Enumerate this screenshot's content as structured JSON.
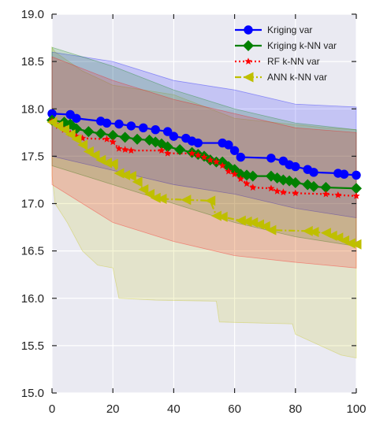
{
  "chart_data": {
    "type": "line",
    "title": "",
    "xlabel": "",
    "ylabel": "",
    "xlim": [
      0,
      100
    ],
    "ylim": [
      15.0,
      19.0
    ],
    "grid": true,
    "legend_position": "top-right",
    "x_ticks": [
      "0",
      "20",
      "40",
      "60",
      "80",
      "100"
    ],
    "y_ticks": [
      "15.0",
      "15.5",
      "16.0",
      "16.5",
      "17.0",
      "17.5",
      "18.0",
      "18.5",
      "19.0"
    ],
    "colors": {
      "background": "#eaeaf2",
      "grid": "#ffffff",
      "kriging": "#0000ff",
      "kriging_knn": "#008000",
      "rf_knn": "#ff0000",
      "ann_knn": "#bfbf00"
    },
    "series": [
      {
        "name": "Kriging var",
        "color": "#0000ff",
        "line": "solid",
        "marker": "circle",
        "points": [
          [
            0,
            17.95
          ],
          [
            6,
            17.94
          ],
          [
            8,
            17.9
          ],
          [
            16,
            17.87
          ],
          [
            18,
            17.85
          ],
          [
            22,
            17.84
          ],
          [
            26,
            17.82
          ],
          [
            30,
            17.8
          ],
          [
            34,
            17.78
          ],
          [
            38,
            17.76
          ],
          [
            40,
            17.71
          ],
          [
            44,
            17.69
          ],
          [
            46,
            17.66
          ],
          [
            48,
            17.64
          ],
          [
            56,
            17.64
          ],
          [
            58,
            17.62
          ],
          [
            60,
            17.56
          ],
          [
            62,
            17.49
          ],
          [
            72,
            17.48
          ],
          [
            76,
            17.45
          ],
          [
            78,
            17.41
          ],
          [
            80,
            17.39
          ],
          [
            84,
            17.36
          ],
          [
            86,
            17.33
          ],
          [
            94,
            17.32
          ],
          [
            96,
            17.31
          ],
          [
            100,
            17.3
          ]
        ],
        "band_upper": [
          [
            0,
            18.6
          ],
          [
            20,
            18.5
          ],
          [
            40,
            18.3
          ],
          [
            60,
            18.2
          ],
          [
            80,
            18.05
          ],
          [
            100,
            18.02
          ]
        ],
        "band_lower": [
          [
            0,
            17.5
          ],
          [
            20,
            17.35
          ],
          [
            40,
            17.2
          ],
          [
            60,
            17.1
          ],
          [
            80,
            16.95
          ],
          [
            100,
            16.85
          ]
        ]
      },
      {
        "name": "Kriging k-NN var",
        "color": "#008000",
        "line": "solid",
        "marker": "diamond",
        "points": [
          [
            0,
            17.88
          ],
          [
            4,
            17.86
          ],
          [
            6,
            17.84
          ],
          [
            8,
            17.79
          ],
          [
            12,
            17.76
          ],
          [
            16,
            17.74
          ],
          [
            20,
            17.72
          ],
          [
            24,
            17.7
          ],
          [
            28,
            17.68
          ],
          [
            32,
            17.67
          ],
          [
            34,
            17.65
          ],
          [
            36,
            17.63
          ],
          [
            38,
            17.6
          ],
          [
            42,
            17.57
          ],
          [
            46,
            17.54
          ],
          [
            48,
            17.52
          ],
          [
            50,
            17.5
          ],
          [
            52,
            17.46
          ],
          [
            54,
            17.44
          ],
          [
            56,
            17.44
          ],
          [
            58,
            17.39
          ],
          [
            60,
            17.36
          ],
          [
            62,
            17.31
          ],
          [
            64,
            17.3
          ],
          [
            66,
            17.29
          ],
          [
            72,
            17.29
          ],
          [
            74,
            17.27
          ],
          [
            76,
            17.25
          ],
          [
            78,
            17.24
          ],
          [
            80,
            17.22
          ],
          [
            84,
            17.2
          ],
          [
            86,
            17.18
          ],
          [
            90,
            17.17
          ],
          [
            100,
            17.16
          ]
        ],
        "band_upper": [
          [
            0,
            18.65
          ],
          [
            20,
            18.45
          ],
          [
            40,
            18.2
          ],
          [
            60,
            18.0
          ],
          [
            80,
            17.85
          ],
          [
            100,
            17.78
          ]
        ],
        "band_lower": [
          [
            0,
            17.4
          ],
          [
            20,
            17.2
          ],
          [
            40,
            17.0
          ],
          [
            60,
            16.8
          ],
          [
            80,
            16.65
          ],
          [
            100,
            16.55
          ]
        ]
      },
      {
        "name": "RF k-NN var",
        "color": "#ff0000",
        "line": "dotted",
        "marker": "star",
        "points": [
          [
            0,
            17.87
          ],
          [
            2,
            17.82
          ],
          [
            4,
            17.78
          ],
          [
            6,
            17.74
          ],
          [
            8,
            17.71
          ],
          [
            10,
            17.69
          ],
          [
            18,
            17.68
          ],
          [
            20,
            17.65
          ],
          [
            22,
            17.58
          ],
          [
            24,
            17.57
          ],
          [
            26,
            17.56
          ],
          [
            36,
            17.56
          ],
          [
            38,
            17.53
          ],
          [
            46,
            17.53
          ],
          [
            48,
            17.51
          ],
          [
            50,
            17.49
          ],
          [
            52,
            17.46
          ],
          [
            54,
            17.44
          ],
          [
            56,
            17.4
          ],
          [
            58,
            17.34
          ],
          [
            60,
            17.31
          ],
          [
            62,
            17.26
          ],
          [
            64,
            17.21
          ],
          [
            66,
            17.17
          ],
          [
            72,
            17.16
          ],
          [
            74,
            17.13
          ],
          [
            76,
            17.12
          ],
          [
            80,
            17.11
          ],
          [
            90,
            17.1
          ],
          [
            94,
            17.09
          ],
          [
            100,
            17.08
          ]
        ],
        "band_upper": [
          [
            0,
            18.55
          ],
          [
            20,
            18.3
          ],
          [
            40,
            18.1
          ],
          [
            60,
            17.95
          ],
          [
            80,
            17.8
          ],
          [
            100,
            17.75
          ]
        ],
        "band_lower": [
          [
            0,
            17.2
          ],
          [
            20,
            16.8
          ],
          [
            40,
            16.6
          ],
          [
            60,
            16.45
          ],
          [
            80,
            16.38
          ],
          [
            100,
            16.32
          ]
        ]
      },
      {
        "name": "ANN k-NN var",
        "color": "#bfbf00",
        "line": "dashdot",
        "marker": "triangle-left",
        "points": [
          [
            0,
            17.86
          ],
          [
            2,
            17.82
          ],
          [
            4,
            17.78
          ],
          [
            6,
            17.73
          ],
          [
            8,
            17.68
          ],
          [
            10,
            17.62
          ],
          [
            12,
            17.55
          ],
          [
            14,
            17.51
          ],
          [
            16,
            17.46
          ],
          [
            18,
            17.43
          ],
          [
            20,
            17.42
          ],
          [
            22,
            17.32
          ],
          [
            24,
            17.3
          ],
          [
            26,
            17.29
          ],
          [
            28,
            17.23
          ],
          [
            30,
            17.15
          ],
          [
            32,
            17.1
          ],
          [
            34,
            17.06
          ],
          [
            36,
            17.05
          ],
          [
            44,
            17.04
          ],
          [
            52,
            17.03
          ],
          [
            54,
            16.87
          ],
          [
            56,
            16.86
          ],
          [
            62,
            16.82
          ],
          [
            64,
            16.81
          ],
          [
            66,
            16.8
          ],
          [
            68,
            16.78
          ],
          [
            70,
            16.76
          ],
          [
            72,
            16.72
          ],
          [
            84,
            16.71
          ],
          [
            86,
            16.7
          ],
          [
            90,
            16.69
          ],
          [
            92,
            16.66
          ],
          [
            94,
            16.64
          ],
          [
            96,
            16.61
          ],
          [
            98,
            16.58
          ],
          [
            100,
            16.57
          ]
        ],
        "band_upper": [
          [
            0,
            18.65
          ],
          [
            1,
            18.6
          ],
          [
            10,
            18.4
          ],
          [
            20,
            18.25
          ],
          [
            30,
            18.2
          ],
          [
            40,
            18.15
          ],
          [
            52,
            18.0
          ],
          [
            60,
            17.9
          ],
          [
            75,
            17.85
          ],
          [
            90,
            17.8
          ],
          [
            100,
            17.78
          ]
        ],
        "band_lower": [
          [
            0,
            17.3
          ],
          [
            1,
            17.0
          ],
          [
            5,
            16.8
          ],
          [
            10,
            16.5
          ],
          [
            15,
            16.35
          ],
          [
            20,
            16.32
          ],
          [
            22,
            16.0
          ],
          [
            34,
            15.98
          ],
          [
            54,
            15.97
          ],
          [
            55,
            15.75
          ],
          [
            79,
            15.73
          ],
          [
            80,
            15.62
          ],
          [
            95,
            15.4
          ],
          [
            100,
            15.37
          ]
        ]
      }
    ]
  }
}
